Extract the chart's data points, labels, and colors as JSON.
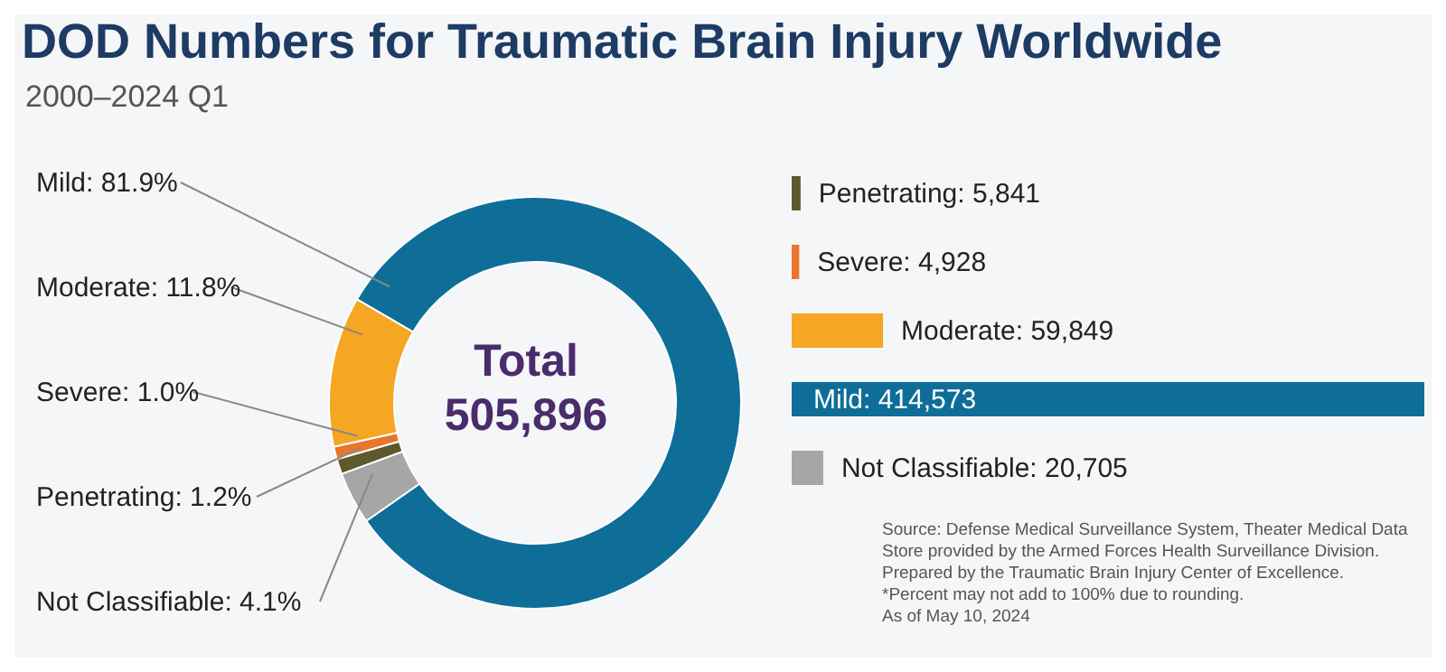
{
  "chart_data": [
    {
      "type": "donut",
      "title": "DOD Numbers for Traumatic Brain Injury Worldwide",
      "subtitle": "2000–2024 Q1",
      "categories": [
        "Mild",
        "Moderate",
        "Severe",
        "Penetrating",
        "Not Classifiable"
      ],
      "values": [
        81.9,
        11.8,
        1.0,
        1.2,
        4.1
      ],
      "value_labels": [
        "81.9%",
        "11.8%",
        "1.0%",
        "1.2%",
        "4.1%"
      ],
      "colors": [
        "#0e6e98",
        "#f5a623",
        "#e8762c",
        "#5c5a2c",
        "#a6a6a6"
      ],
      "annotations": [
        "Total",
        "505,896"
      ]
    },
    {
      "type": "bar",
      "orientation": "horizontal",
      "categories": [
        null,
        null,
        null,
        null,
        null
      ],
      "values": [
        5841,
        4928,
        59849,
        414573,
        20705
      ],
      "value_labels": [
        "Penetrating: 5,841",
        "Severe: 4,928",
        "Moderate: 59,849",
        "Mild: 414,573",
        "Not Classifiable: 20,705"
      ],
      "colors": [
        "#5c5a2c",
        "#e8762c",
        "#f5a623",
        "#0e6e98",
        "#a6a6a6"
      ],
      "annotations": [
        "Source: Defense Medical Surveillance System, Theater Medical Data Store provided by the Armed Forces Health Surveillance Division.",
        "Prepared by the Traumatic Brain Injury Center of Excellence.",
        "*Percent may not add to 100% due to rounding.",
        "As of May 10, 2024"
      ]
    }
  ]
}
